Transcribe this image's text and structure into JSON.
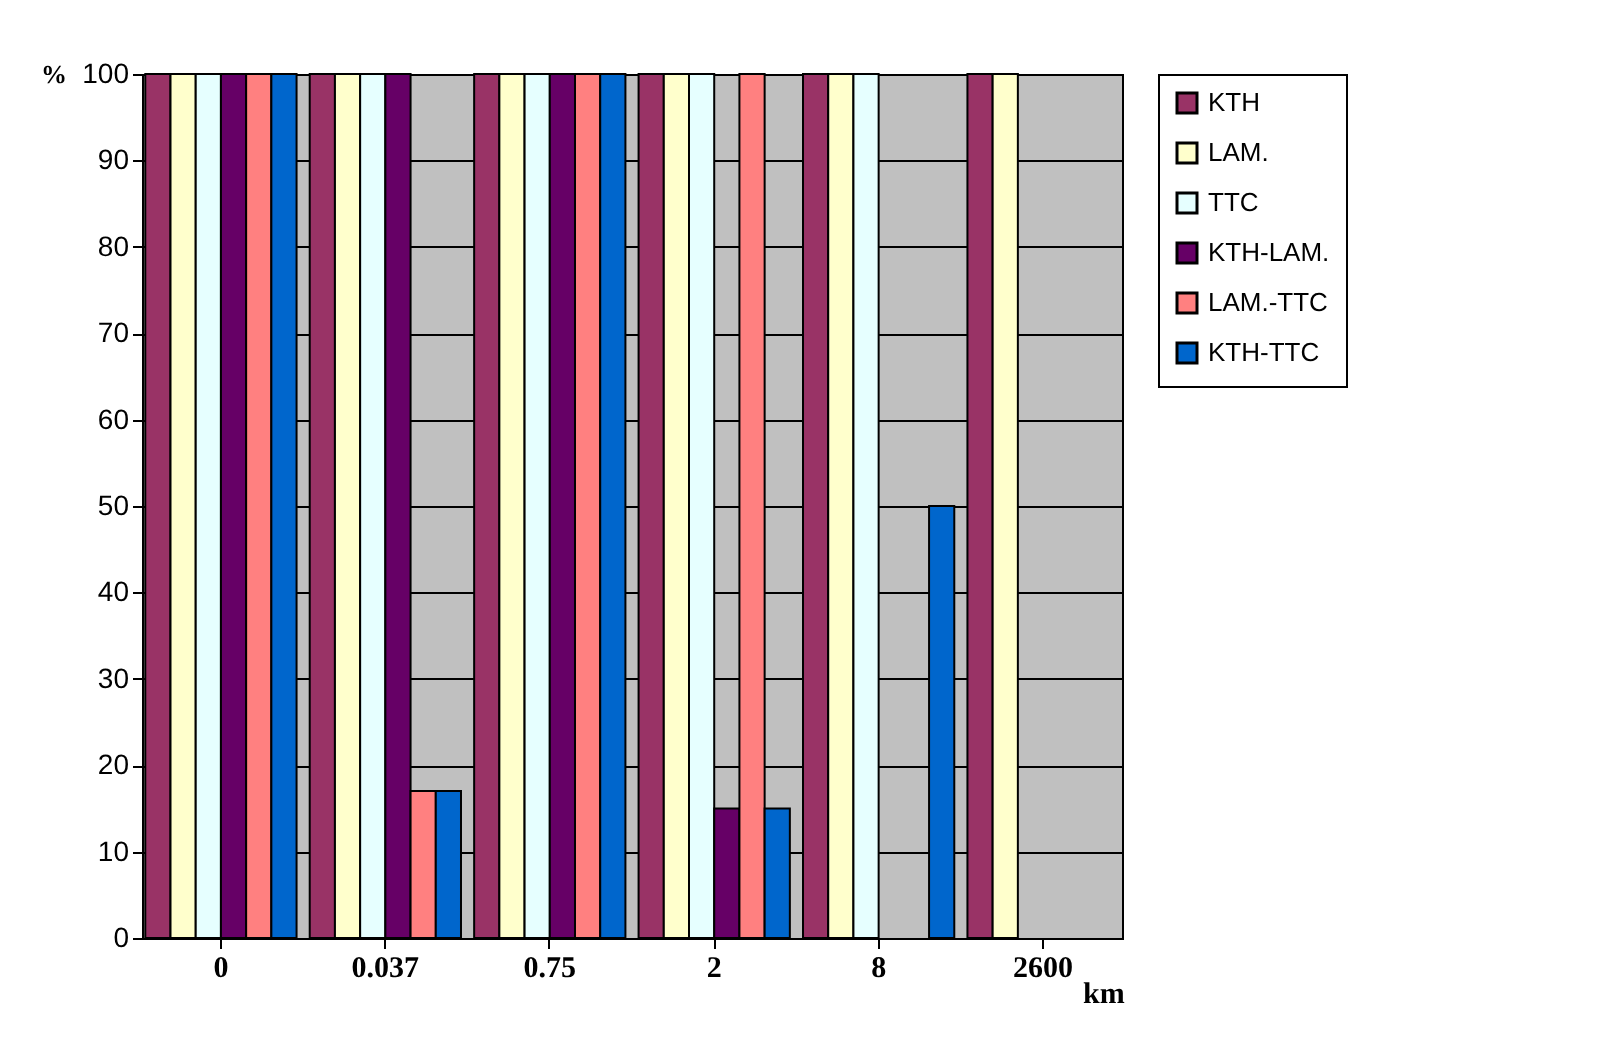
{
  "chart_data": {
    "type": "bar",
    "xlabel": "km",
    "ylabel": "%",
    "categories": [
      "0",
      "0.037",
      "0.75",
      "2",
      "8",
      "2600"
    ],
    "series": [
      {
        "name": "KTH",
        "color": "#993366",
        "values": [
          100,
          100,
          100,
          100,
          100,
          100
        ]
      },
      {
        "name": "LAM.",
        "color": "#ffffcc",
        "values": [
          100,
          100,
          100,
          100,
          100,
          100
        ]
      },
      {
        "name": "TTC",
        "color": "#e6ffff",
        "values": [
          100,
          100,
          100,
          100,
          100,
          0
        ]
      },
      {
        "name": "KTH-LAM.",
        "color": "#660066",
        "values": [
          100,
          100,
          100,
          15,
          0,
          0
        ]
      },
      {
        "name": "LAM.-TTC",
        "color": "#ff8080",
        "values": [
          100,
          17,
          100,
          100,
          0,
          0
        ]
      },
      {
        "name": "KTH-TTC",
        "color": "#0066cc",
        "values": [
          100,
          17,
          100,
          15,
          50,
          0
        ]
      }
    ],
    "ylim": [
      0,
      100
    ],
    "yticks": [
      0,
      10,
      20,
      30,
      40,
      50,
      60,
      70,
      80,
      90,
      100
    ],
    "grid": "y",
    "legend": "right"
  }
}
